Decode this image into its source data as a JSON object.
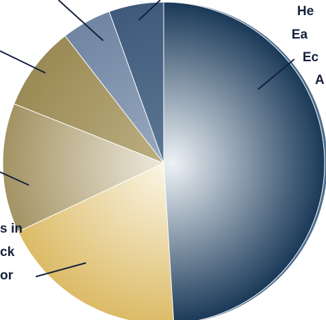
{
  "chart_data": {
    "type": "pie",
    "title": "",
    "start_angle_deg": 0,
    "direction": "clockwise",
    "slices": [
      {
        "label": "He\nEa\nEc\n",
        "value": 49.0,
        "color_center": "#eef2f6",
        "color_edge": "#1a3958"
      },
      {
        "label": "s in\nck\nor",
        "value": 19.0,
        "color_center": "#fbf7e9",
        "color_edge": "#dcbb66"
      },
      {
        "label": "",
        "value": 13.0,
        "color_center": "#f2eee4",
        "color_edge": "#a39363"
      },
      {
        "label": "",
        "value": 8.5,
        "color_center": "#bdb082",
        "color_edge": "#9a8a55"
      },
      {
        "label": "",
        "value": 5.0,
        "color_center": "#9aaabf",
        "color_edge": "#6f85a3"
      },
      {
        "label": "",
        "value": 5.5,
        "color_center": "#5d7896",
        "color_edge": "#3f5a7a"
      }
    ],
    "separators_color": "#ffffff",
    "leader_line_color": "#13203b"
  },
  "labels": {
    "right": [
      "He",
      "Ea",
      "Ec",
      "A"
    ],
    "left": [
      "s in",
      "ck",
      "or"
    ]
  }
}
